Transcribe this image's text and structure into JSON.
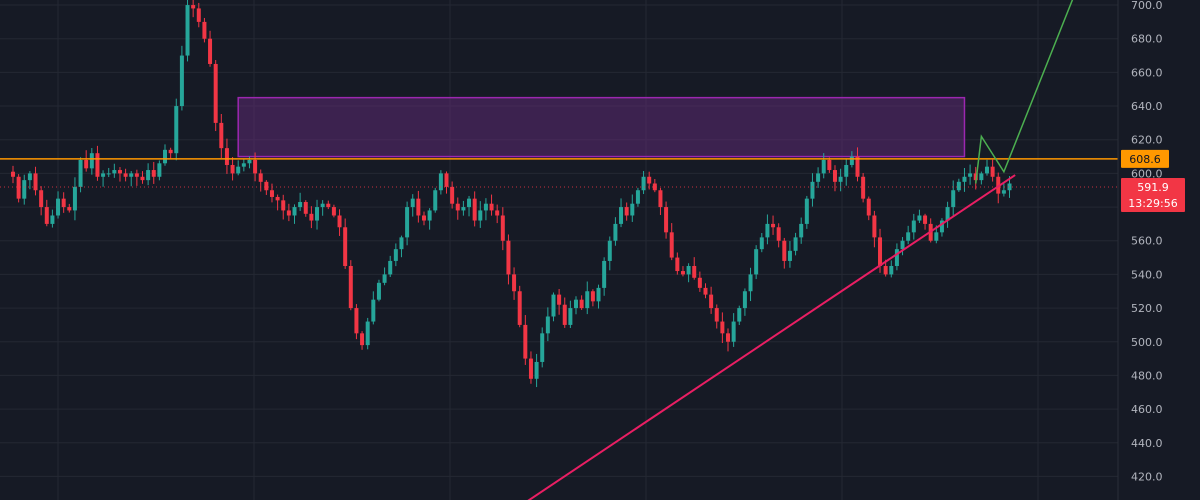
{
  "chart_data": {
    "type": "candlestick",
    "title": "",
    "xlabel": "",
    "ylabel": "",
    "ylim": [
      406,
      703
    ],
    "y_ticks": [
      "700.0",
      "680.0",
      "660.0",
      "640.0",
      "620.0",
      "600.0",
      "580.0",
      "560.0",
      "540.0",
      "520.0",
      "500.0",
      "480.0",
      "460.0",
      "440.0",
      "420.0"
    ],
    "grid": true,
    "colors": {
      "background": "#161a25",
      "grid": "#242833",
      "up": "#26a69a",
      "down": "#f23645",
      "resistance": "#ff9800",
      "trendline": "#e91e63",
      "zone_fill": "#5c2a73",
      "zone_border": "#9c27b0",
      "projection": "#4caf50",
      "price_tag_current": "#f23645",
      "price_tag_level": "#ff9800"
    },
    "closes": [
      598,
      585,
      596,
      600,
      590,
      580,
      570,
      575,
      585,
      580,
      578,
      592,
      608,
      603,
      612,
      598,
      600,
      600,
      602,
      600,
      598,
      600,
      598,
      596,
      602,
      598,
      606,
      614,
      612,
      640,
      670,
      700,
      698,
      690,
      680,
      665,
      630,
      615,
      605,
      600,
      604,
      606,
      608,
      600,
      595,
      590,
      586,
      584,
      578,
      575,
      580,
      583,
      576,
      572,
      580,
      582,
      580,
      575,
      568,
      545,
      520,
      505,
      498,
      512,
      525,
      535,
      540,
      548,
      555,
      562,
      580,
      585,
      575,
      572,
      578,
      590,
      600,
      592,
      582,
      578,
      580,
      585,
      572,
      578,
      582,
      578,
      575,
      560,
      540,
      530,
      510,
      490,
      478,
      488,
      505,
      515,
      528,
      522,
      510,
      520,
      525,
      520,
      530,
      524,
      532,
      548,
      560,
      570,
      580,
      575,
      582,
      590,
      598,
      594,
      590,
      580,
      565,
      550,
      542,
      540,
      545,
      538,
      532,
      528,
      520,
      512,
      505,
      500,
      512,
      520,
      530,
      540,
      555,
      562,
      570,
      568,
      560,
      548,
      554,
      562,
      570,
      585,
      595,
      600,
      608,
      602,
      595,
      598,
      605,
      610,
      598,
      585,
      575,
      562,
      545,
      540,
      545,
      555,
      560,
      565,
      572,
      575,
      570,
      560,
      565,
      572,
      580,
      590,
      595,
      598,
      600,
      596,
      600,
      604,
      598,
      588,
      590,
      594
    ],
    "levels": {
      "resistance": 608.6,
      "current": 591.9
    },
    "supply_zone": {
      "top": 645,
      "bottom": 610,
      "x_start_index": 40,
      "x_end_index": 169
    },
    "trendline": {
      "start": {
        "index": 89,
        "price": 400
      },
      "end": {
        "index": 178,
        "price": 599
      }
    },
    "projection": [
      {
        "index": 171,
        "price": 594
      },
      {
        "index": 172,
        "price": 622
      },
      {
        "index": 176,
        "price": 601
      },
      {
        "index": 189,
        "price": 710
      }
    ],
    "price_tags": {
      "resistance_label": "608.6",
      "current_label": "591.9",
      "countdown": "13:29:56"
    }
  }
}
